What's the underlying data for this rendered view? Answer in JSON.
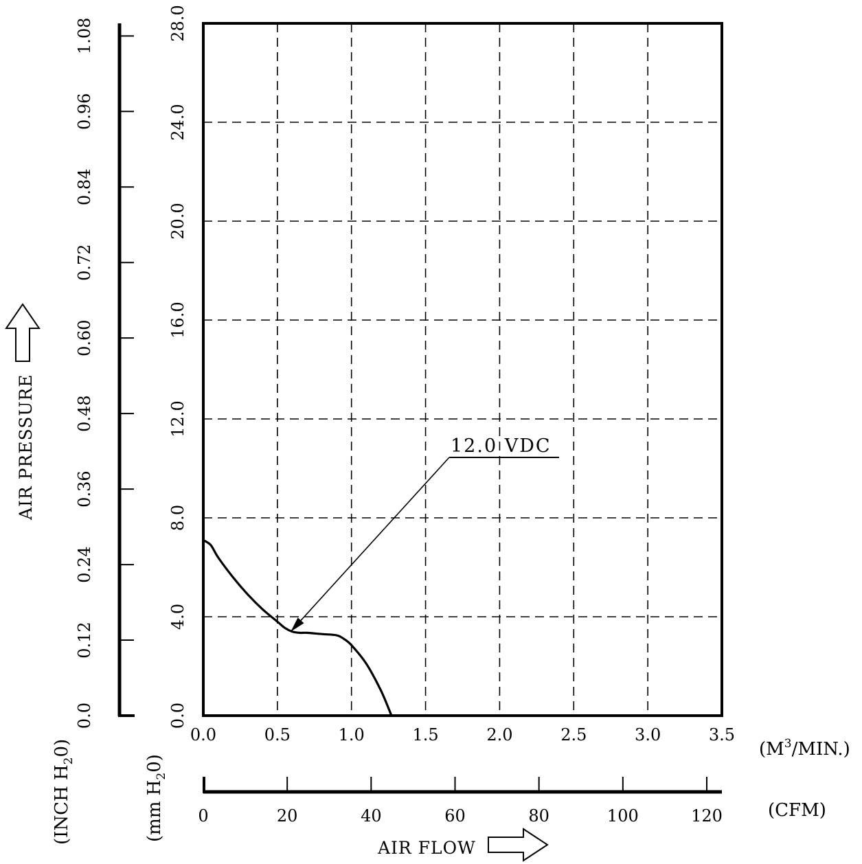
{
  "chart_data": {
    "type": "line",
    "x_unit": "(M³/MIN.)",
    "x_unit_main": "(M",
    "x_unit_sup": "3",
    "x_unit_tail": "/MIN.)",
    "x_ticks": [
      "0.0",
      "0.5",
      "1.0",
      "1.5",
      "2.0",
      "2.5",
      "3.0",
      "3.5"
    ],
    "xlim": [
      0,
      3.5
    ],
    "x2_unit": "(CFM)",
    "x2_ticks": [
      "0",
      "20",
      "40",
      "60",
      "80",
      "100",
      "120"
    ],
    "x2lim": [
      0,
      123.6
    ],
    "y_unit": "(mm H₂0)",
    "y_unit_main": "(mm H",
    "y_unit_sub": "2",
    "y_unit_tail": "0)",
    "y_ticks": [
      "0.0",
      "4.0",
      "8.0",
      "12.0",
      "16.0",
      "20.0",
      "24.0",
      "28.0"
    ],
    "ylim": [
      0,
      28
    ],
    "y2_unit": "(INCH H₂0)",
    "y2_unit_main": "(INCH H",
    "y2_unit_sub": "2",
    "y2_unit_tail": "0)",
    "y2_ticks": [
      "0.0",
      "0.12",
      "0.24",
      "0.36",
      "0.48",
      "0.60",
      "0.72",
      "0.84",
      "0.96",
      "1.08"
    ],
    "y2lim": [
      0,
      1.1
    ],
    "ylabel": "AIR PRESSURE",
    "xlabel": "AIR FLOW",
    "grid": true,
    "series": [
      {
        "name": "12.0 VDC",
        "x": [
          0.0,
          0.05,
          0.1,
          0.2,
          0.3,
          0.4,
          0.5,
          0.55,
          0.6,
          0.65,
          0.7,
          0.8,
          0.9,
          0.95,
          1.0,
          1.1,
          1.2,
          1.27
        ],
        "y": [
          7.1,
          6.9,
          6.4,
          5.6,
          4.9,
          4.3,
          3.8,
          3.55,
          3.4,
          3.35,
          3.35,
          3.3,
          3.25,
          3.1,
          2.85,
          2.1,
          1.0,
          0.0
        ]
      }
    ],
    "annotations": [
      {
        "text": "12.0 VDC",
        "x": 0.59,
        "y": 3.4
      }
    ]
  }
}
